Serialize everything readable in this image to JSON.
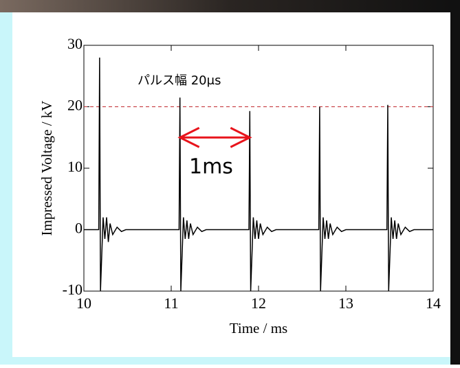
{
  "chart_data": {
    "type": "line",
    "x_label": "Time / ms",
    "y_label": "Impressed Voltage / kV",
    "xlim": [
      10,
      14
    ],
    "ylim": [
      -10,
      30
    ],
    "xticks": [
      10,
      11,
      12,
      13,
      14
    ],
    "yticks": [
      -10,
      0,
      10,
      20,
      30
    ],
    "series": [
      {
        "color": "#000000",
        "x": [
          10,
          10.17,
          10.18,
          10.19,
          10.22,
          10.24,
          10.26,
          10.28,
          10.3,
          10.33,
          10.38,
          10.43,
          10.48,
          11.09,
          11.1,
          11.11,
          11.14,
          11.16,
          11.18,
          11.2,
          11.22,
          11.25,
          11.3,
          11.35,
          11.4,
          11.89,
          11.9,
          11.91,
          11.94,
          11.96,
          11.98,
          12.0,
          12.02,
          12.05,
          12.1,
          12.15,
          12.2,
          12.69,
          12.7,
          12.71,
          12.74,
          12.76,
          12.78,
          12.8,
          12.82,
          12.85,
          12.9,
          12.95,
          13.0,
          13.47,
          13.48,
          13.49,
          13.52,
          13.54,
          13.56,
          13.58,
          13.6,
          13.63,
          13.68,
          13.73,
          13.78,
          14
        ],
        "values": [
          0,
          0,
          28,
          -10,
          2,
          -1.5,
          2,
          -2,
          1,
          -0.8,
          0.4,
          -0.3,
          0,
          0,
          21.5,
          -10,
          2,
          -1.5,
          1.5,
          -1.5,
          1,
          -0.8,
          0.4,
          -0.3,
          0,
          0,
          19.3,
          -10,
          2,
          -1.5,
          1.5,
          -1.5,
          1,
          -0.8,
          0.4,
          -0.3,
          0,
          0,
          20,
          -10,
          2,
          -1.5,
          1.5,
          -1.5,
          1,
          -0.8,
          0.4,
          -0.3,
          0,
          0,
          20.3,
          -10,
          2,
          -1.5,
          1.5,
          -1.5,
          1,
          -0.8,
          0.4,
          -0.3,
          0,
          0
        ]
      }
    ],
    "reference_line": {
      "value": 20,
      "color": "#c0282d"
    },
    "arrow": {
      "x": [
        11.1,
        11.9
      ],
      "y": 15,
      "color": "#e8141c",
      "label": "1ms"
    },
    "annotation": "パルス幅 20μs"
  }
}
